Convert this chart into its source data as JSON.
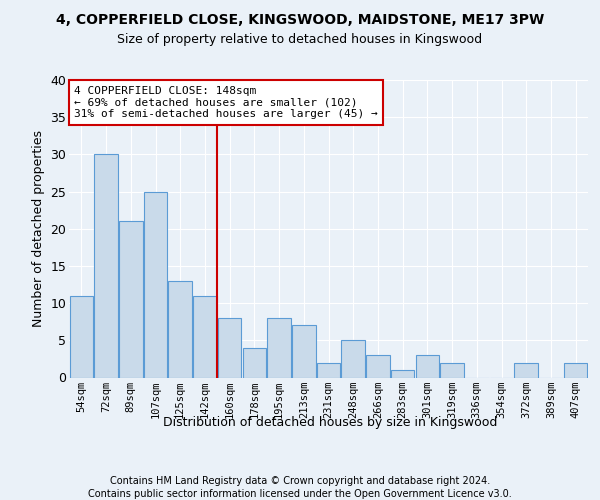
{
  "title1": "4, COPPERFIELD CLOSE, KINGSWOOD, MAIDSTONE, ME17 3PW",
  "title2": "Size of property relative to detached houses in Kingswood",
  "xlabel": "Distribution of detached houses by size in Kingswood",
  "ylabel": "Number of detached properties",
  "categories": [
    "54sqm",
    "72sqm",
    "89sqm",
    "107sqm",
    "125sqm",
    "142sqm",
    "160sqm",
    "178sqm",
    "195sqm",
    "213sqm",
    "231sqm",
    "248sqm",
    "266sqm",
    "283sqm",
    "301sqm",
    "319sqm",
    "336sqm",
    "354sqm",
    "372sqm",
    "389sqm",
    "407sqm"
  ],
  "values": [
    11,
    30,
    21,
    25,
    13,
    11,
    8,
    4,
    8,
    7,
    2,
    5,
    3,
    1,
    3,
    2,
    0,
    0,
    2,
    0,
    2
  ],
  "bar_color": "#c9daea",
  "bar_edge_color": "#5b9bd5",
  "vline_color": "#cc0000",
  "ylim": [
    0,
    40
  ],
  "yticks": [
    0,
    5,
    10,
    15,
    20,
    25,
    30,
    35,
    40
  ],
  "annotation_line1": "4 COPPERFIELD CLOSE: 148sqm",
  "annotation_line2": "← 69% of detached houses are smaller (102)",
  "annotation_line3": "31% of semi-detached houses are larger (45) →",
  "annotation_box_color": "#ffffff",
  "annotation_box_edge": "#cc0000",
  "footer1": "Contains HM Land Registry data © Crown copyright and database right 2024.",
  "footer2": "Contains public sector information licensed under the Open Government Licence v3.0.",
  "bg_color": "#eaf1f8",
  "plot_bg_color": "#eaf1f8"
}
